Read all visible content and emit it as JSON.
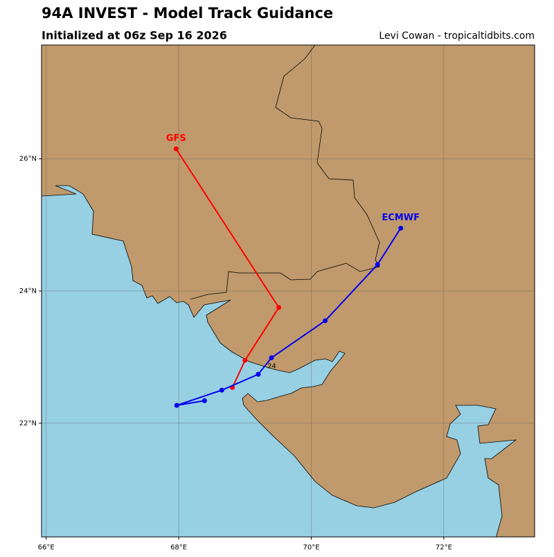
{
  "chart_data": {
    "type": "track",
    "title": "94A INVEST - Model Track Guidance",
    "subtitle": "Initialized at 06z Sep 16 2026",
    "credit": "Levi Cowan - tropicaltidbits.com",
    "xlim": [
      65.93,
      73.37
    ],
    "ylim": [
      20.28,
      27.72
    ],
    "xticks": [
      {
        "value": 66,
        "label": "66°E"
      },
      {
        "value": 68,
        "label": "68°E"
      },
      {
        "value": 70,
        "label": "70°E"
      },
      {
        "value": 72,
        "label": "72°E"
      }
    ],
    "yticks": [
      {
        "value": 22,
        "label": "22°N"
      },
      {
        "value": 24,
        "label": "24°N"
      },
      {
        "value": 26,
        "label": "26°N"
      }
    ],
    "grid": true,
    "series": [
      {
        "name": "GFS",
        "color": "#ff0000",
        "x": [
          68.81,
          69.0,
          69.51,
          67.96
        ],
        "y": [
          22.54,
          22.95,
          23.75,
          26.15
        ]
      },
      {
        "name": "ECMWF",
        "color": "#0000ee",
        "x": [
          68.39,
          67.97,
          68.65,
          69.2,
          69.4,
          70.21,
          71.0,
          71.35
        ],
        "y": [
          22.34,
          22.27,
          22.5,
          22.74,
          22.99,
          23.55,
          24.4,
          24.95
        ]
      }
    ],
    "annotations": [
      {
        "text": "24",
        "series": 1,
        "point": 4
      }
    ]
  }
}
